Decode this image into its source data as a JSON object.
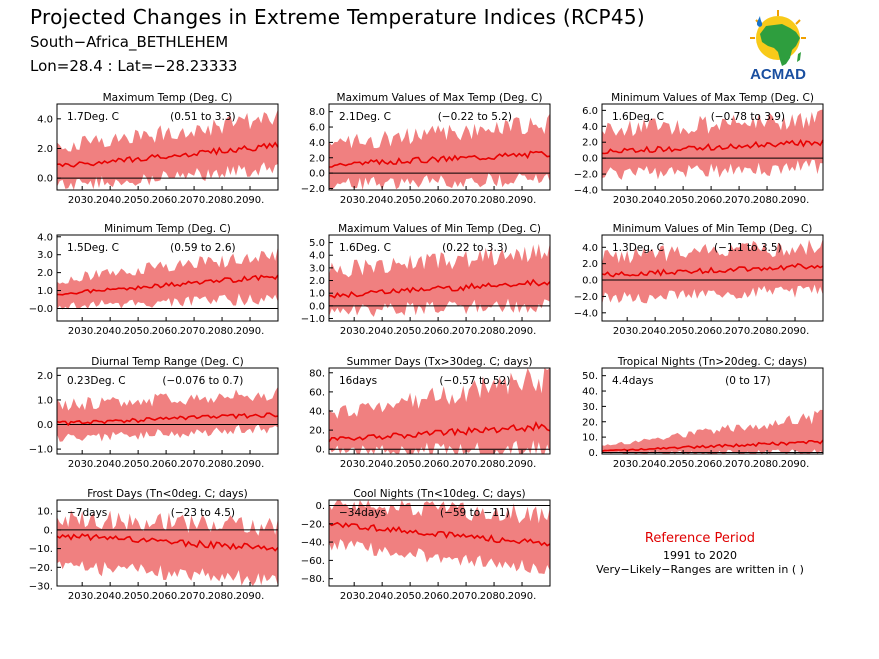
{
  "header": {
    "title": "Projected Changes in Extreme Temperature Indices (RCP45)",
    "location": "South−Africa_BETHLEHEM",
    "coords": "Lon=28.4 : Lat=−28.23333"
  },
  "logo": {
    "text": "ACMAD",
    "icon": "africa-map-sun-rain-icon"
  },
  "colors": {
    "band": "#f08080",
    "line": "#e80000",
    "ref_title": "#e00000"
  },
  "reference": {
    "title": "Reference Period",
    "years": "1991 to 2020",
    "note": "Very−Likely−Ranges are written in ( )"
  },
  "chart_data": [
    {
      "type": "area",
      "title": "Maximum Temp (Deg. C)",
      "mean_label": "1.7Deg. C",
      "range_label": "(0.51 to 3.3)",
      "x": [
        2021,
        2100
      ],
      "ylim": [
        -0.8,
        5.0
      ],
      "yticks": [
        0,
        2,
        4
      ],
      "ytick_labels": [
        "0.0",
        "2.0",
        "4.0"
      ],
      "xtick_labels": [
        "2030.",
        "2040.",
        "2050.",
        "2060.",
        "2070.",
        "2080.",
        "2090."
      ],
      "median": {
        "start": 0.8,
        "end": 2.2
      },
      "band": {
        "low_start": -0.4,
        "low_end": 0.8,
        "high_start": 2.0,
        "high_end": 3.8
      }
    },
    {
      "type": "area",
      "title": "Maximum Values of Max Temp (Deg. C)",
      "mean_label": "2.1Deg. C",
      "range_label": "(−0.22 to 5.2)",
      "x": [
        2021,
        2100
      ],
      "ylim": [
        -2.2,
        9.0
      ],
      "yticks": [
        -2,
        0,
        2,
        4,
        6,
        8
      ],
      "ytick_labels": [
        "−2.0",
        "0.0",
        "2.0",
        "4.0",
        "6.0",
        "8.0"
      ],
      "xtick_labels": [
        "2030.",
        "2040.",
        "2050.",
        "2060.",
        "2070.",
        "2080.",
        "2090."
      ],
      "median": {
        "start": 1.1,
        "end": 2.6
      },
      "band": {
        "low_start": -1.3,
        "low_end": -0.3,
        "high_start": 3.5,
        "high_end": 6.0
      }
    },
    {
      "type": "area",
      "title": "Minimum Values of Max Temp (Deg. C)",
      "mean_label": "1.6Deg. C",
      "range_label": "(−0.78 to 3.9)",
      "x": [
        2021,
        2100
      ],
      "ylim": [
        -4.0,
        6.8
      ],
      "yticks": [
        -4,
        -2,
        0,
        2,
        4,
        6
      ],
      "ytick_labels": [
        "−4.0",
        "−2.0",
        "0.0",
        "2.0",
        "4.0",
        "6.0"
      ],
      "xtick_labels": [
        "2030.",
        "2040.",
        "2050.",
        "2060.",
        "2070.",
        "2080.",
        "2090."
      ],
      "median": {
        "start": 0.8,
        "end": 2.0
      },
      "band": {
        "low_start": -1.8,
        "low_end": -0.8,
        "high_start": 3.2,
        "high_end": 4.6
      }
    },
    {
      "type": "area",
      "title": "Minimum Temp (Deg. C)",
      "mean_label": "1.5Deg. C",
      "range_label": "(0.59 to 2.6)",
      "x": [
        2021,
        2100
      ],
      "ylim": [
        -0.7,
        4.1
      ],
      "yticks": [
        -0.0,
        1,
        2,
        3,
        4
      ],
      "ytick_labels": [
        "−0.0",
        "1.0",
        "2.0",
        "3.0",
        "4.0"
      ],
      "xtick_labels": [
        "2030.",
        "2040.",
        "2050.",
        "2060.",
        "2070.",
        "2080.",
        "2090."
      ],
      "median": {
        "start": 0.8,
        "end": 1.8
      },
      "band": {
        "low_start": 0.2,
        "low_end": 0.7,
        "high_start": 1.5,
        "high_end": 2.9
      }
    },
    {
      "type": "area",
      "title": "Maximum Values of Min Temp (Deg. C)",
      "mean_label": "1.6Deg. C",
      "range_label": "(0.22 to 3.3)",
      "x": [
        2021,
        2100
      ],
      "ylim": [
        -1.2,
        5.6
      ],
      "yticks": [
        -1,
        0,
        1,
        2,
        3,
        4,
        5
      ],
      "ytick_labels": [
        "−1.0",
        "0.0",
        "1.0",
        "2.0",
        "3.0",
        "4.0",
        "5.0"
      ],
      "xtick_labels": [
        "2030.",
        "2040.",
        "2050.",
        "2060.",
        "2070.",
        "2080.",
        "2090."
      ],
      "median": {
        "start": 0.8,
        "end": 1.9
      },
      "band": {
        "low_start": -0.3,
        "low_end": 0.3,
        "high_start": 2.6,
        "high_end": 4.0
      }
    },
    {
      "type": "area",
      "title": "Minimum Values of Min Temp (Deg. C)",
      "mean_label": "1.3Deg. C",
      "range_label": "(−1.1 to 3.5)",
      "x": [
        2021,
        2100
      ],
      "ylim": [
        -5.0,
        5.5
      ],
      "yticks": [
        -4,
        -2,
        0,
        2,
        4
      ],
      "ytick_labels": [
        "−4.0",
        "−2.0",
        "0.0",
        "2.0",
        "4.0"
      ],
      "xtick_labels": [
        "2030.",
        "2040.",
        "2050.",
        "2060.",
        "2070.",
        "2080.",
        "2090."
      ],
      "median": {
        "start": 0.6,
        "end": 1.8
      },
      "band": {
        "low_start": -2.0,
        "low_end": -1.0,
        "high_start": 2.6,
        "high_end": 3.8
      }
    },
    {
      "type": "area",
      "title": "Diurnal Temp Range (Deg. C)",
      "mean_label": "0.23Deg. C",
      "range_label": "(−0.076 to 0.7)",
      "x": [
        2021,
        2100
      ],
      "ylim": [
        -1.2,
        2.3
      ],
      "yticks": [
        -1,
        0,
        1,
        2
      ],
      "ytick_labels": [
        "−1.0",
        "0.0",
        "1.0",
        "2.0"
      ],
      "xtick_labels": [
        "2030.",
        "2040.",
        "2050.",
        "2060.",
        "2070.",
        "2080.",
        "2090."
      ],
      "median": {
        "start": 0.05,
        "end": 0.4
      },
      "band": {
        "low_start": -0.5,
        "low_end": -0.1,
        "high_start": 0.7,
        "high_end": 1.2
      }
    },
    {
      "type": "area",
      "title": "Summer Days (Tx>30deg. C; days)",
      "mean_label": "16days",
      "range_label": "(−0.57 to 52)",
      "x": [
        2021,
        2100
      ],
      "ylim": [
        -5,
        85
      ],
      "yticks": [
        0,
        20,
        40,
        60,
        80
      ],
      "ytick_labels": [
        "0.",
        "20.",
        "40.",
        "60.",
        "80."
      ],
      "xtick_labels": [
        "2030.",
        "2040.",
        "2050.",
        "2060.",
        "2070.",
        "2080.",
        "2090."
      ],
      "median": {
        "start": 10,
        "end": 24
      },
      "band": {
        "low_start": 0,
        "low_end": 2,
        "high_start": 35,
        "high_end": 70
      }
    },
    {
      "type": "area",
      "title": "Tropical Nights (Tn>20deg. C; days)",
      "mean_label": "4.4days",
      "range_label": "(0 to 17)",
      "x": [
        2021,
        2100
      ],
      "ylim": [
        -1,
        55
      ],
      "yticks": [
        0,
        10,
        20,
        30,
        40,
        50
      ],
      "ytick_labels": [
        "0.",
        "10.",
        "20.",
        "30.",
        "40.",
        "50."
      ],
      "xtick_labels": [
        "2030.",
        "2040.",
        "2050.",
        "2060.",
        "2070.",
        "2080.",
        "2090."
      ],
      "median": {
        "start": 1,
        "end": 7
      },
      "band": {
        "low_start": 0,
        "low_end": 0,
        "high_start": 4,
        "high_end": 22
      }
    },
    {
      "type": "area",
      "title": "Frost Days (Tn<0deg. C; days)",
      "mean_label": "−7days",
      "range_label": "(−23 to 4.5)",
      "x": [
        2021,
        2100
      ],
      "ylim": [
        -30,
        16
      ],
      "yticks": [
        -30,
        -20,
        -10,
        0,
        10
      ],
      "ytick_labels": [
        "−30.",
        "−20.",
        "−10.",
        "0.",
        "10."
      ],
      "xtick_labels": [
        "2030.",
        "2040.",
        "2050.",
        "2060.",
        "2070.",
        "2080.",
        "2090."
      ],
      "median": {
        "start": -3,
        "end": -10
      },
      "band": {
        "low_start": -18,
        "low_end": -26,
        "high_start": 5,
        "high_end": 0
      }
    },
    {
      "type": "area",
      "title": "Cool Nights (Tn<10deg. C; days)",
      "mean_label": "−34days",
      "range_label": "(−59 to −11)",
      "x": [
        2021,
        2100
      ],
      "ylim": [
        -88,
        6
      ],
      "yticks": [
        -80,
        -60,
        -40,
        -20,
        0
      ],
      "ytick_labels": [
        "−80.",
        "−60.",
        "−40.",
        "−20.",
        "0."
      ],
      "xtick_labels": [
        "2030.",
        "2040.",
        "2050.",
        "2060.",
        "2070.",
        "2080.",
        "2090."
      ],
      "median": {
        "start": -20,
        "end": -42
      },
      "band": {
        "low_start": -40,
        "low_end": -68,
        "high_start": 0,
        "high_end": -15
      }
    }
  ]
}
